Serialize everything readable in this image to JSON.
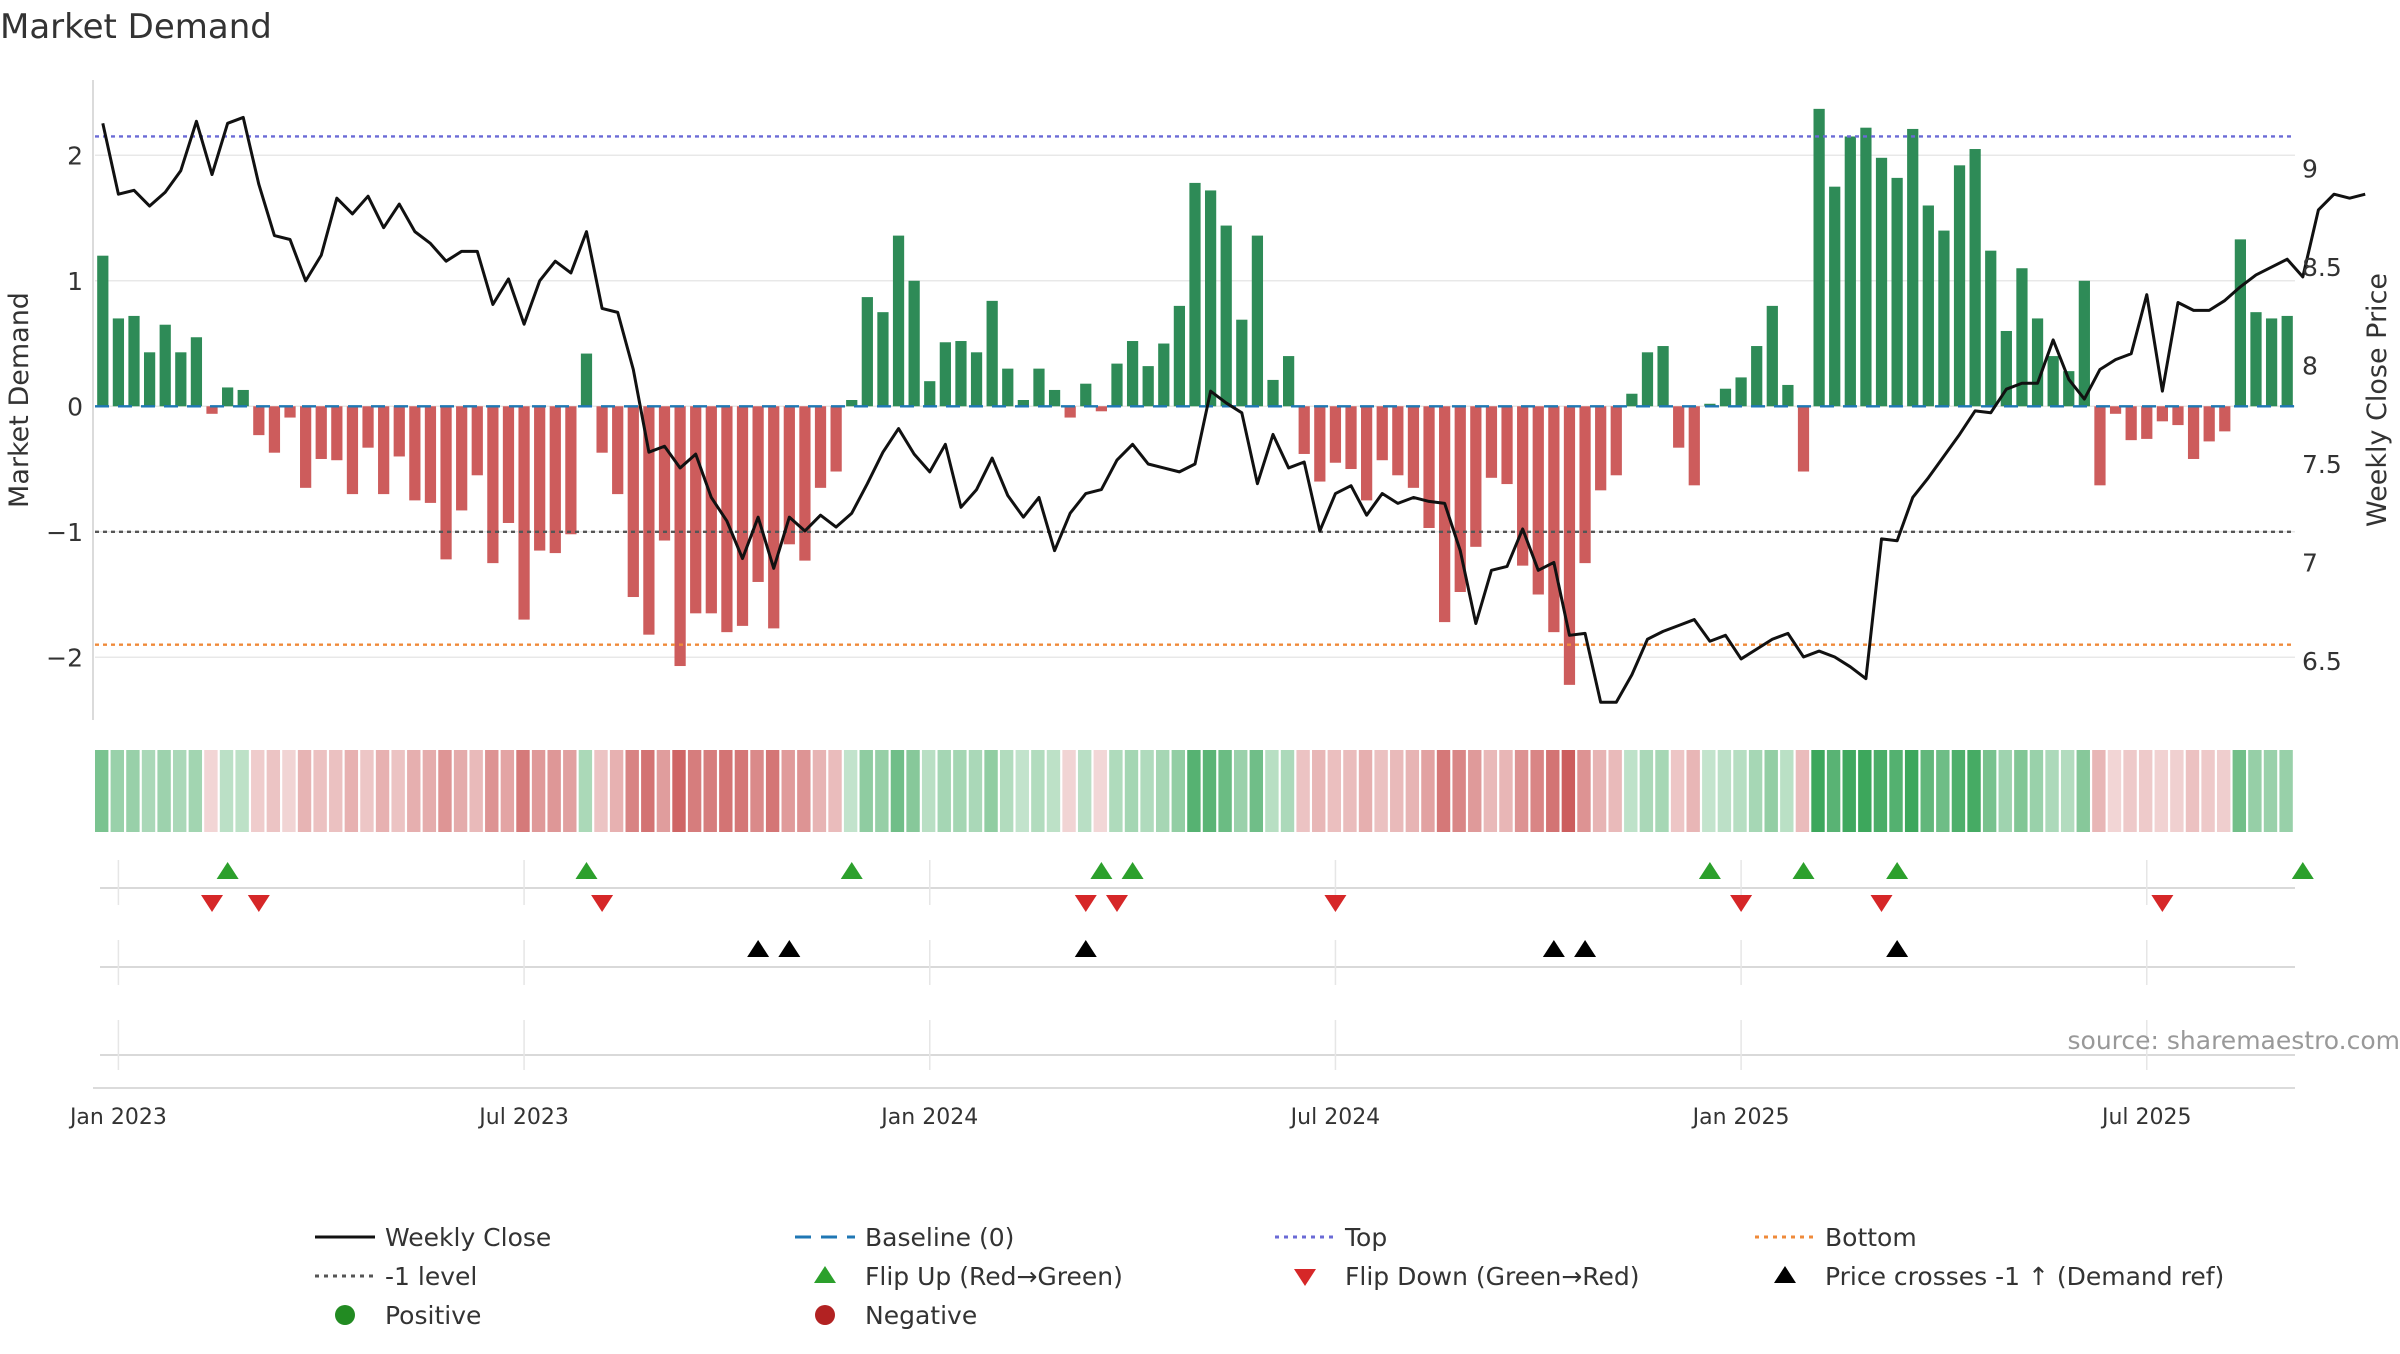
{
  "chart_data": {
    "type": "bar",
    "title": "Market Demand",
    "ylabel": "Market Demand",
    "y2label": "Weekly Close Price",
    "ylim": [
      -2.5,
      2.6
    ],
    "y2lim": [
      6.2,
      9.45
    ],
    "yticks": [
      2,
      1,
      0,
      -1,
      -2
    ],
    "ytick_labels": [
      "2",
      "1",
      "0",
      "−1",
      "−2"
    ],
    "y2ticks": [
      9,
      8.5,
      8,
      7.5,
      7,
      6.5
    ],
    "y2tick_labels": [
      "9",
      "8.5",
      "8",
      "7.5",
      "7",
      "6.5"
    ],
    "xtick_positions": [
      1,
      27,
      53,
      79,
      105,
      131
    ],
    "xtick_labels": [
      "Jan 2023",
      "Jul 2023",
      "Jan 2024",
      "Jul 2024",
      "Jan 2025",
      "Jul 2025"
    ],
    "source": "source: sharemaestro.com",
    "reference_lines": [
      {
        "name": "Top",
        "value": 2.15,
        "color": "#6a6ad6",
        "style": "dotted"
      },
      {
        "name": "Bottom",
        "value": -1.9,
        "color": "#ef8a3a",
        "style": "dotted"
      },
      {
        "name": "-1 level",
        "value": -1,
        "color": "#555555",
        "style": "dotted"
      },
      {
        "name": "Baseline (0)",
        "value": 0,
        "color": "#1f77b4",
        "style": "dashed"
      }
    ],
    "series": [
      {
        "name": "Market Demand",
        "type": "bar",
        "positive_color": "#2e8b57",
        "negative_color": "#cd5c5c",
        "values": [
          1.2,
          0.7,
          0.72,
          0.43,
          0.65,
          0.43,
          0.55,
          -0.06,
          0.15,
          0.13,
          -0.23,
          -0.37,
          -0.09,
          -0.65,
          -0.42,
          -0.43,
          -0.7,
          -0.33,
          -0.7,
          -0.4,
          -0.75,
          -0.77,
          -1.22,
          -0.83,
          -0.55,
          -1.25,
          -0.93,
          -1.7,
          -1.15,
          -1.17,
          -1.02,
          0.42,
          -0.37,
          -0.7,
          -1.52,
          -1.82,
          -1.07,
          -2.07,
          -1.65,
          -1.65,
          -1.8,
          -1.75,
          -1.4,
          -1.77,
          -1.1,
          -1.23,
          -0.65,
          -0.52,
          0.05,
          0.87,
          0.75,
          1.36,
          1.0,
          0.2,
          0.51,
          0.52,
          0.43,
          0.84,
          0.3,
          0.05,
          0.3,
          0.13,
          -0.09,
          0.18,
          -0.04,
          0.34,
          0.52,
          0.32,
          0.5,
          0.8,
          1.78,
          1.72,
          1.44,
          0.69,
          1.36,
          0.21,
          0.4,
          -0.38,
          -0.6,
          -0.45,
          -0.5,
          -0.75,
          -0.43,
          -0.55,
          -0.65,
          -0.97,
          -1.72,
          -1.48,
          -1.12,
          -0.57,
          -0.62,
          -1.27,
          -1.5,
          -1.8,
          -2.22,
          -1.25,
          -0.67,
          -0.55,
          0.1,
          0.43,
          0.48,
          -0.33,
          -0.63,
          0.02,
          0.14,
          0.23,
          0.48,
          0.8,
          0.17,
          -0.52,
          2.37,
          1.75,
          2.15,
          2.22,
          1.98,
          1.82,
          2.21,
          1.6,
          1.4,
          1.92,
          2.05,
          1.24,
          0.6,
          1.1,
          0.7,
          0.4,
          0.28,
          1.0,
          -0.63,
          -0.06,
          -0.27,
          -0.26,
          -0.12,
          -0.15,
          -0.42,
          -0.28,
          -0.2,
          1.33,
          0.75,
          0.7,
          0.72
        ]
      },
      {
        "name": "Weekly Close",
        "type": "line",
        "color": "#111111",
        "values": [
          9.23,
          8.87,
          8.89,
          8.81,
          8.88,
          8.99,
          9.24,
          8.97,
          9.23,
          9.26,
          8.92,
          8.66,
          8.64,
          8.43,
          8.56,
          8.85,
          8.77,
          8.86,
          8.7,
          8.82,
          8.68,
          8.62,
          8.53,
          8.58,
          8.58,
          8.31,
          8.44,
          8.21,
          8.43,
          8.53,
          8.47,
          8.68,
          8.29,
          8.27,
          7.98,
          7.56,
          7.59,
          7.48,
          7.55,
          7.33,
          7.21,
          7.02,
          7.23,
          6.97,
          7.23,
          7.16,
          7.24,
          7.18,
          7.25,
          7.4,
          7.56,
          7.68,
          7.55,
          7.46,
          7.6,
          7.28,
          7.37,
          7.53,
          7.34,
          7.23,
          7.33,
          7.06,
          7.25,
          7.35,
          7.37,
          7.52,
          7.6,
          7.5,
          7.48,
          7.46,
          7.5,
          7.87,
          7.81,
          7.76,
          7.4,
          7.65,
          7.48,
          7.51,
          7.16,
          7.35,
          7.39,
          7.24,
          7.35,
          7.3,
          7.33,
          7.31,
          7.3,
          7.06,
          6.69,
          6.96,
          6.98,
          7.17,
          6.96,
          7.0,
          6.63,
          6.64,
          6.29,
          6.29,
          6.43,
          6.61,
          6.65,
          6.68,
          6.71,
          6.6,
          6.63,
          6.51,
          6.56,
          6.61,
          6.64,
          6.52,
          6.55,
          6.52,
          6.47,
          6.41,
          7.12,
          7.11,
          7.33,
          7.43,
          7.54,
          7.65,
          7.77,
          7.76,
          7.88,
          7.91,
          7.91,
          8.13,
          7.93,
          7.83,
          7.98,
          8.03,
          8.06,
          8.36,
          7.87,
          8.32,
          8.28,
          8.28,
          8.33,
          8.4,
          8.46,
          8.5,
          8.54,
          8.45,
          8.79,
          8.87,
          8.85,
          8.87
        ]
      }
    ],
    "heat_strip": {
      "name": "Demand heat strip",
      "source_series": "Market Demand"
    },
    "flips_up": [
      8,
      31,
      48,
      64,
      66,
      103,
      109,
      115,
      141
    ],
    "flips_down": [
      7,
      10,
      32,
      63,
      65,
      79,
      105,
      114,
      132
    ],
    "price_crosses_up": [
      42,
      44,
      63,
      93,
      95,
      115
    ],
    "legend": {
      "placement": "bottom",
      "items": [
        {
          "label": "Weekly Close",
          "symbol": "solid-line",
          "color": "#111111"
        },
        {
          "label": "Baseline (0)",
          "symbol": "dashed-line",
          "color": "#1f77b4"
        },
        {
          "label": "Top",
          "symbol": "dotted-line",
          "color": "#6a6ad6"
        },
        {
          "label": "Bottom",
          "symbol": "dotted-line",
          "color": "#ef8a3a"
        },
        {
          "label": "-1 level",
          "symbol": "dotted-line",
          "color": "#555555"
        },
        {
          "label": "Flip Up (Red→Green)",
          "symbol": "triangle-up",
          "color": "#2ca02c"
        },
        {
          "label": "Flip Down (Green→Red)",
          "symbol": "triangle-down",
          "color": "#d62728"
        },
        {
          "label": "Price crosses -1 ↑ (Demand ref)",
          "symbol": "triangle-up",
          "color": "#000000"
        },
        {
          "label": "Positive",
          "symbol": "circle",
          "color": "#228b22"
        },
        {
          "label": "Negative",
          "symbol": "circle",
          "color": "#b22222"
        }
      ]
    }
  }
}
